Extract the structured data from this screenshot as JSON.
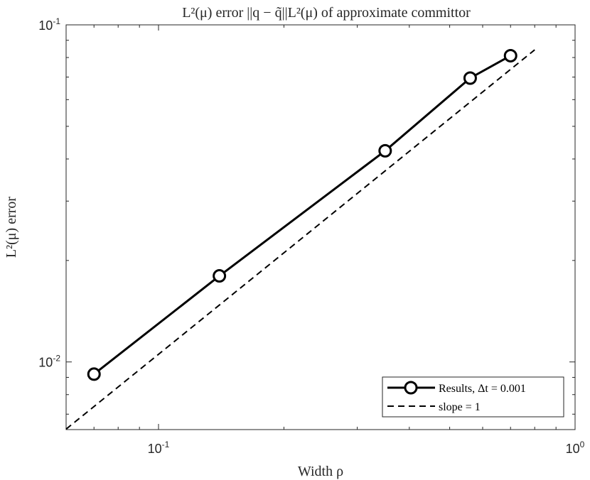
{
  "chart_data": {
    "type": "line",
    "title": "L²(μ) error ||q − q̃||L²(μ) of approximate committor",
    "xlabel": "Width ρ",
    "ylabel": "L²(μ) error",
    "xscale": "log",
    "yscale": "log",
    "xlim": [
      0.06,
      1.0
    ],
    "ylim": [
      0.0063,
      0.1
    ],
    "x_ticks": [
      {
        "value": 0.1,
        "base": "10",
        "exp": "-1"
      },
      {
        "value": 1.0,
        "base": "10",
        "exp": "0"
      }
    ],
    "y_ticks": [
      {
        "value": 0.01,
        "base": "10",
        "exp": "-2"
      },
      {
        "value": 0.1,
        "base": "10",
        "exp": "-1"
      }
    ],
    "grid": false,
    "legend_position": "bottom-right",
    "series": [
      {
        "name": "Results, Δt = 0.001",
        "style": "solid-circle-markers",
        "color": "#000000",
        "x": [
          0.07,
          0.14,
          0.35,
          0.56,
          0.7
        ],
        "y": [
          0.0092,
          0.018,
          0.0423,
          0.0695,
          0.081
        ]
      },
      {
        "name": "slope = 1",
        "style": "dashed",
        "color": "#000000",
        "x": [
          0.06,
          0.8
        ],
        "y": [
          0.00632,
          0.0843
        ]
      }
    ]
  }
}
